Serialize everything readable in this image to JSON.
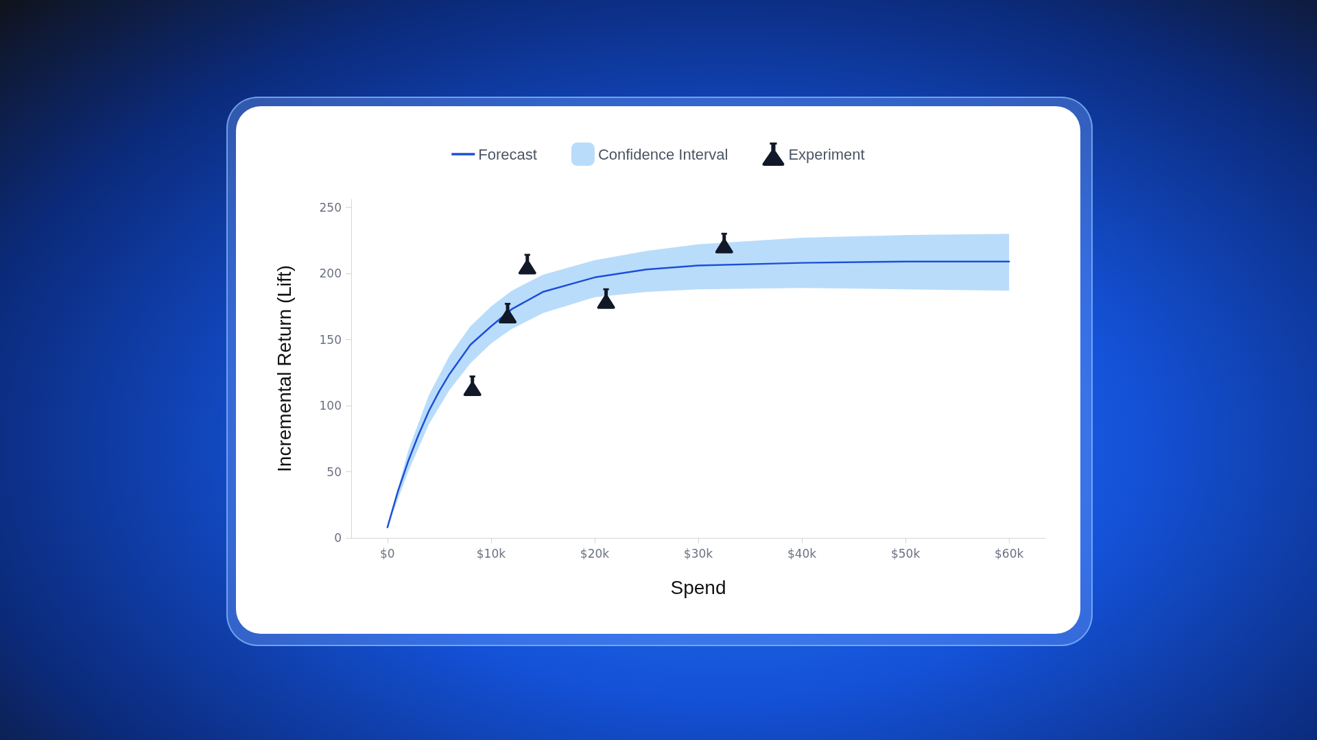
{
  "chart_data": {
    "type": "line",
    "xlabel": "Spend",
    "ylabel": "Incremental Return (Lift)",
    "xlim": [
      -3500,
      63500
    ],
    "ylim": [
      0,
      256
    ],
    "xticks": [
      {
        "value": 0,
        "label": "$0"
      },
      {
        "value": 10000,
        "label": "$10k"
      },
      {
        "value": 20000,
        "label": "$20k"
      },
      {
        "value": 30000,
        "label": "$30k"
      },
      {
        "value": 40000,
        "label": "$40k"
      },
      {
        "value": 50000,
        "label": "$50k"
      },
      {
        "value": 60000,
        "label": "$60k"
      }
    ],
    "yticks": [
      0,
      50,
      100,
      150,
      200,
      250
    ],
    "legend": "top",
    "grid": false,
    "series": [
      {
        "name": "Forecast",
        "color": "#1d4ed8",
        "line_style": "solid",
        "marker": "none",
        "x": [
          0,
          1000,
          2000,
          3000,
          4000,
          5000,
          6000,
          8000,
          10000,
          12000,
          15000,
          20000,
          25000,
          30000,
          40000,
          50000,
          60000
        ],
        "values": [
          8,
          35,
          58,
          78,
          96,
          111,
          124,
          146,
          160,
          173,
          186,
          197,
          203,
          206,
          208,
          209,
          209
        ]
      },
      {
        "name": "Confidence Interval",
        "type": "area",
        "color": "#b9dcfb",
        "x": [
          0,
          2000,
          4000,
          6000,
          8000,
          10000,
          12000,
          15000,
          20000,
          25000,
          30000,
          40000,
          50000,
          60000
        ],
        "values": [
          null,
          null,
          null,
          null,
          null,
          null,
          null,
          null,
          null,
          null,
          null,
          null,
          null,
          null
        ],
        "upper": [
          8,
          66,
          108,
          138,
          160,
          175,
          187,
          199,
          210,
          217,
          222,
          227,
          229,
          230
        ],
        "lower": [
          8,
          50,
          86,
          112,
          132,
          147,
          158,
          170,
          182,
          186,
          188,
          189,
          188,
          187
        ]
      },
      {
        "name": "Experiment",
        "type": "scatter",
        "color": "#111827",
        "marker": "triangle",
        "x": [
          8200,
          11600,
          13500,
          21100,
          32500
        ],
        "values": [
          115,
          170,
          207,
          181,
          223
        ]
      }
    ]
  }
}
